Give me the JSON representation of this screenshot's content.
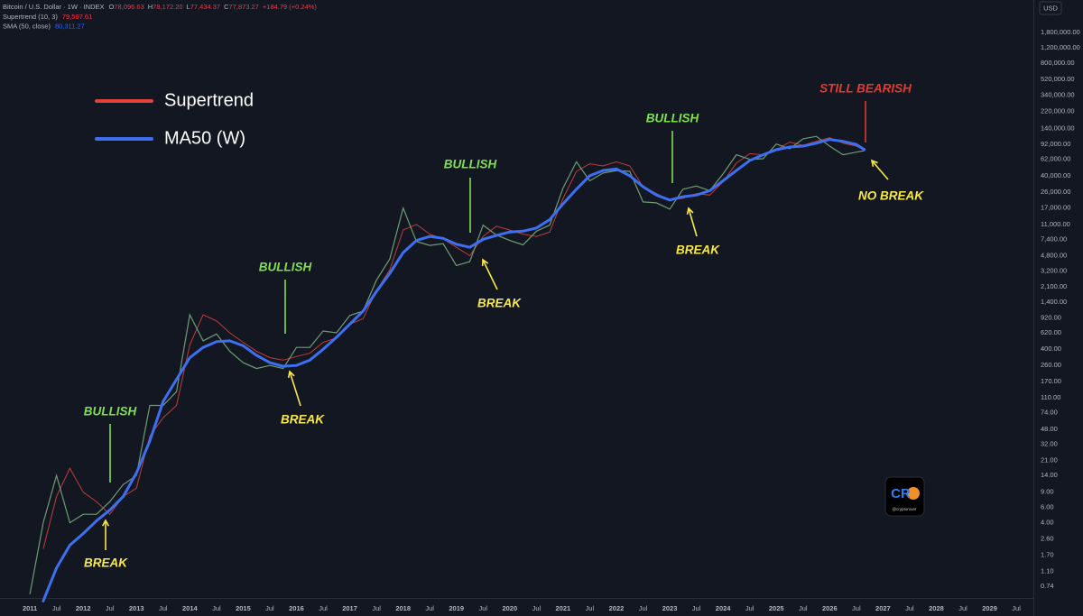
{
  "chart_data": {
    "type": "line",
    "header": {
      "symbol": "Bitcoin / U.S. Dollar · 1W · INDEX",
      "ohlc": [
        {
          "label": "O",
          "value": "78,096.63"
        },
        {
          "label": "H",
          "value": "78,172.20"
        },
        {
          "label": "L",
          "value": "77,434.37"
        },
        {
          "label": "C",
          "value": "77,873.27"
        }
      ],
      "change": "+184.79 (+0.24%)",
      "indicators": [
        {
          "name": "Supertrend (10, 3)",
          "value": "79,597.61",
          "color": "#f23645"
        },
        {
          "name": "SMA (50, close)",
          "value": "80,311.27",
          "color": "#2962ff"
        }
      ]
    },
    "currency": "USD",
    "annotations": [
      "BULLISH",
      "BREAK",
      "BULLISH",
      "BREAK",
      "BULLISH",
      "BREAK",
      "BULLISH",
      "BREAK",
      "STILL BEARISH",
      "NO BREAK"
    ],
    "watermark": {
      "logo": "CR",
      "handle": "@cryptorover"
    },
    "log_scale": true,
    "grid": false,
    "legend": "top-left",
    "x": [
      2011,
      2011.25,
      2011.5,
      2011.75,
      2012,
      2012.25,
      2012.5,
      2012.75,
      2013,
      2013.25,
      2013.5,
      2013.75,
      2014,
      2014.25,
      2014.5,
      2014.75,
      2015,
      2015.25,
      2015.5,
      2015.75,
      2016,
      2016.25,
      2016.5,
      2016.75,
      2017,
      2017.25,
      2017.5,
      2017.75,
      2018,
      2018.25,
      2018.5,
      2018.75,
      2019,
      2019.25,
      2019.5,
      2019.75,
      2020,
      2020.25,
      2020.5,
      2020.75,
      2021,
      2021.25,
      2021.5,
      2021.75,
      2022,
      2022.25,
      2022.5,
      2022.75,
      2023,
      2023.25,
      2023.5,
      2023.75,
      2024,
      2024.25,
      2024.5,
      2024.75,
      2025,
      2025.25,
      2025.5,
      2025.75,
      2026,
      2026.25,
      2026.5,
      2026.65
    ],
    "price": {
      "color": "#6f9c73",
      "values": [
        0.6,
        4,
        14,
        4,
        5,
        5,
        7,
        11,
        14,
        90,
        90,
        130,
        1000,
        500,
        600,
        380,
        280,
        240,
        260,
        240,
        420,
        420,
        650,
        620,
        980,
        1100,
        2500,
        4400,
        17000,
        7000,
        6300,
        6600,
        3700,
        4100,
        10800,
        8300,
        7200,
        6400,
        9200,
        10800,
        29000,
        58000,
        35000,
        43000,
        46000,
        45000,
        20000,
        19500,
        16500,
        28000,
        30500,
        27000,
        42000,
        70000,
        62000,
        63000,
        93000,
        82000,
        107000,
        114000,
        88000,
        70000,
        75000,
        77873.27
      ]
    },
    "series": [
      {
        "name": "Supertrend",
        "color": "#e0433e",
        "values": [
          null,
          2,
          8,
          17,
          9,
          7,
          5,
          8,
          10,
          40,
          65,
          90,
          450,
          1000,
          850,
          620,
          480,
          380,
          320,
          300,
          330,
          360,
          480,
          540,
          780,
          900,
          1900,
          3300,
          9500,
          11000,
          8500,
          7500,
          6000,
          4800,
          8000,
          10500,
          9500,
          8500,
          8000,
          9000,
          22000,
          45000,
          55000,
          52000,
          58000,
          52000,
          30000,
          25000,
          21000,
          22000,
          25000,
          24000,
          34000,
          56000,
          72000,
          70000,
          80000,
          98000,
          90000,
          100000,
          110000,
          95000,
          88000,
          79597.61
        ]
      },
      {
        "name": "MA50 (W)",
        "color": "#3d6ff0",
        "values": [
          null,
          0.5,
          1.2,
          2.2,
          3,
          4.2,
          5.6,
          8,
          15,
          35,
          100,
          180,
          320,
          420,
          490,
          500,
          440,
          340,
          280,
          255,
          260,
          300,
          400,
          550,
          780,
          1100,
          1850,
          3000,
          5200,
          7200,
          8000,
          7600,
          6500,
          6000,
          7400,
          8200,
          9000,
          9200,
          10000,
          12500,
          19000,
          28000,
          40000,
          46000,
          48000,
          40000,
          30000,
          24000,
          21000,
          23000,
          24000,
          27000,
          35000,
          46000,
          60000,
          70000,
          80000,
          86000,
          88000,
          95000,
          105000,
          100000,
          92000,
          80311.27
        ]
      }
    ],
    "xlim": [
      2010.44,
      2029.82
    ],
    "xticks": [
      2011,
      {
        "value": 2011.5,
        "label": "Jul"
      },
      2012,
      {
        "value": 2012.5,
        "label": "Jul"
      },
      2013,
      {
        "value": 2013.5,
        "label": "Jul"
      },
      2014,
      {
        "value": 2014.5,
        "label": "Jul"
      },
      2015,
      {
        "value": 2015.5,
        "label": "Jul"
      },
      2016,
      {
        "value": 2016.5,
        "label": "Jul"
      },
      2017,
      {
        "value": 2017.5,
        "label": "Jul"
      },
      2018,
      {
        "value": 2018.5,
        "label": "Jul"
      },
      2019,
      {
        "value": 2019.5,
        "label": "Jul"
      },
      2020,
      {
        "value": 2020.5,
        "label": "Jul"
      },
      2021,
      {
        "value": 2021.5,
        "label": "Jul"
      },
      2022,
      {
        "value": 2022.5,
        "label": "Jul"
      },
      2023,
      {
        "value": 2023.5,
        "label": "Jul"
      },
      2024,
      {
        "value": 2024.5,
        "label": "Jul"
      },
      2025,
      {
        "value": 2025.5,
        "label": "Jul"
      },
      2026,
      {
        "value": 2026.5,
        "label": "Jul"
      },
      2027,
      {
        "value": 2027.5,
        "label": "Jul"
      },
      2028,
      {
        "value": 2028.5,
        "label": "Jul"
      },
      2029,
      {
        "value": 2029.5,
        "label": "Jul"
      }
    ],
    "ylim": [
      0.336,
      4260000
    ],
    "yticks": [
      {
        "value": 1800000,
        "label": "1,800,000.00"
      },
      {
        "value": 1200000,
        "label": "1,200,000.00"
      },
      {
        "value": 800000,
        "label": "800,000.00"
      },
      {
        "value": 520000,
        "label": "520,000.00"
      },
      {
        "value": 340000,
        "label": "340,000.00"
      },
      {
        "value": 220000,
        "label": "220,000.00"
      },
      {
        "value": 140000,
        "label": "140,000.00"
      },
      {
        "value": 92000,
        "label": "92,000.00"
      },
      {
        "value": 62000,
        "label": "62,000.00"
      },
      {
        "value": 40000,
        "label": "40,000.00"
      },
      {
        "value": 26000,
        "label": "26,000.00"
      },
      {
        "value": 17000,
        "label": "17,000.00"
      },
      {
        "value": 11000,
        "label": "11,000.00"
      },
      {
        "value": 7400,
        "label": "7,400.00"
      },
      {
        "value": 4800,
        "label": "4,800.00"
      },
      {
        "value": 3200,
        "label": "3,200.00"
      },
      {
        "value": 2100,
        "label": "2,100.00"
      },
      {
        "value": 1400,
        "label": "1,400.00"
      },
      {
        "value": 920,
        "label": "920.00"
      },
      {
        "value": 620,
        "label": "620.00"
      },
      {
        "value": 400,
        "label": "400.00"
      },
      {
        "value": 260,
        "label": "260.00"
      },
      {
        "value": 170,
        "label": "170.00"
      },
      {
        "value": 110,
        "label": "110.00"
      },
      {
        "value": 74,
        "label": "74.00"
      },
      {
        "value": 48,
        "label": "48.00"
      },
      {
        "value": 32,
        "label": "32.00"
      },
      {
        "value": 21,
        "label": "21.00"
      },
      {
        "value": 14,
        "label": "14.00"
      },
      {
        "value": 9,
        "label": "9.00"
      },
      {
        "value": 6,
        "label": "6.00"
      },
      {
        "value": 4,
        "label": "4.00"
      },
      {
        "value": 2.6,
        "label": "2.60"
      },
      {
        "value": 1.7,
        "label": "1.70"
      },
      {
        "value": 1.1,
        "label": "1.10"
      },
      0.74
    ]
  }
}
